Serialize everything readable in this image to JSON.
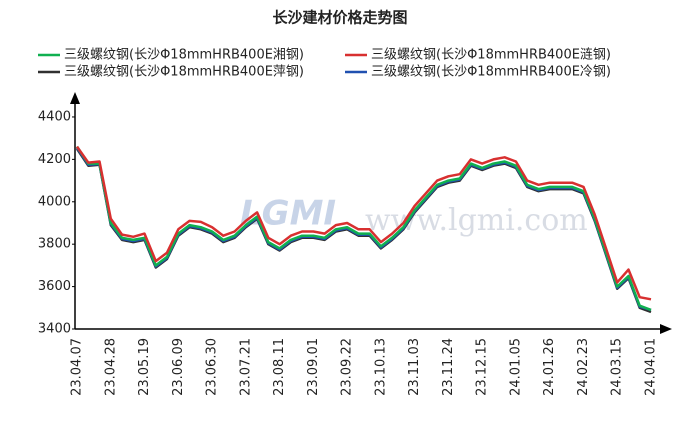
{
  "chart_data": {
    "type": "line",
    "title": "长沙建材价格走势图",
    "watermark": "www.lgmi.com",
    "logo": "LGMI",
    "categories": [
      "23.04.07",
      null,
      null,
      "23.04.28",
      null,
      null,
      "23.05.19",
      null,
      null,
      "23.06.09",
      null,
      null,
      "23.06.30",
      null,
      null,
      "23.07.21",
      null,
      null,
      "23.08.11",
      null,
      null,
      "23.09.01",
      null,
      null,
      "23.09.22",
      null,
      null,
      "23.10.13",
      null,
      null,
      "23.11.03",
      null,
      null,
      "23.11.24",
      null,
      null,
      "23.12.15",
      null,
      null,
      "24.01.05",
      null,
      null,
      "24.01.26",
      null,
      null,
      "24.02.23",
      null,
      null,
      "24.03.15",
      null,
      null,
      "24.04.01"
    ],
    "series": [
      {
        "name": "三级螺纹钢(长沙Φ18mmHRB400E湘钢)",
        "color": "#10b050",
        "values": [
          4260,
          4180,
          4180,
          3900,
          3830,
          3820,
          3830,
          3700,
          3740,
          3850,
          3890,
          3880,
          3860,
          3820,
          3840,
          3890,
          3930,
          3810,
          3780,
          3820,
          3840,
          3840,
          3830,
          3870,
          3880,
          3850,
          3850,
          3790,
          3830,
          3880,
          3960,
          4020,
          4080,
          4100,
          4110,
          4180,
          4160,
          4180,
          4190,
          4170,
          4080,
          4060,
          4070,
          4070,
          4070,
          4050,
          3920,
          3760,
          3600,
          3650,
          3510,
          3490
        ]
      },
      {
        "name": "三级螺纹钢(长沙Φ18mmHRB400E涟钢)",
        "color": "#d83030",
        "values": [
          4260,
          4185,
          4190,
          3920,
          3845,
          3835,
          3850,
          3720,
          3760,
          3870,
          3910,
          3905,
          3880,
          3840,
          3860,
          3910,
          3950,
          3830,
          3800,
          3840,
          3860,
          3860,
          3850,
          3890,
          3900,
          3870,
          3870,
          3810,
          3850,
          3900,
          3980,
          4040,
          4100,
          4120,
          4130,
          4200,
          4180,
          4200,
          4210,
          4190,
          4100,
          4080,
          4090,
          4090,
          4090,
          4070,
          3940,
          3780,
          3620,
          3680,
          3550,
          3540
        ]
      },
      {
        "name": "三级螺纹钢(长沙Φ18mmHRB400E萍钢)",
        "color": "#303030",
        "values": [
          4250,
          4170,
          4175,
          3890,
          3820,
          3810,
          3820,
          3690,
          3730,
          3840,
          3880,
          3870,
          3850,
          3810,
          3830,
          3880,
          3920,
          3800,
          3770,
          3810,
          3830,
          3830,
          3820,
          3860,
          3870,
          3840,
          3840,
          3780,
          3820,
          3870,
          3950,
          4010,
          4070,
          4090,
          4100,
          4170,
          4150,
          4170,
          4180,
          4160,
          4070,
          4050,
          4060,
          4060,
          4060,
          4040,
          3910,
          3750,
          3590,
          3640,
          3500,
          3480
        ]
      },
      {
        "name": "三级螺纹钢(长沙Φ18mmHRB400E冷钢)",
        "color": "#2050b0",
        "values": [
          4255,
          4175,
          4178,
          3895,
          3825,
          3815,
          3825,
          3695,
          3735,
          3845,
          3885,
          3875,
          3855,
          3815,
          3835,
          3885,
          3925,
          3805,
          3775,
          3815,
          3835,
          3835,
          3825,
          3865,
          3875,
          3845,
          3845,
          3785,
          3825,
          3875,
          3955,
          4015,
          4075,
          4095,
          4105,
          4175,
          4155,
          4175,
          4185,
          4165,
          4075,
          4055,
          4065,
          4065,
          4065,
          4045,
          3915,
          3755,
          3595,
          3645,
          3505,
          3490
        ]
      }
    ],
    "ylim": [
      3400,
      4480
    ],
    "yticks": [
      3400,
      3600,
      3800,
      4000,
      4200,
      4400
    ],
    "grid": false
  }
}
